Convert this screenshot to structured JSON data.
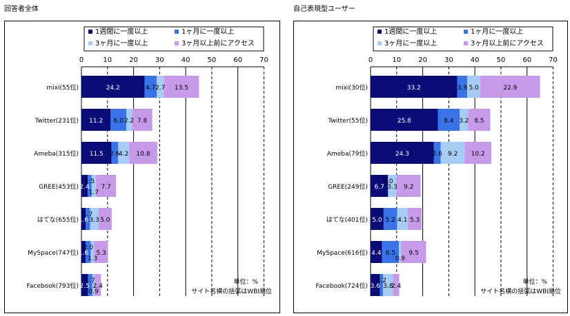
{
  "chart_data": [
    {
      "type": "bar",
      "stacked": true,
      "orientation": "horizontal",
      "title": "回答者全体",
      "categories": [
        "mixi(55位)",
        "Twitter(231位)",
        "Ameba(315位)",
        "GREE(453位)",
        "はてな(655位)",
        "MySpace(747位)",
        "Facebook(793位)"
      ],
      "series": [
        {
          "name": "1週間に一度以上",
          "color": "#0a0a78",
          "values": [
            24.2,
            11.2,
            11.5,
            2.4,
            1.6,
            1.6,
            2.5
          ]
        },
        {
          "name": "1ヶ月に一度以上",
          "color": "#3a73e8",
          "values": [
            4.7,
            6.0,
            2.6,
            1.5,
            1.7,
            2.0,
            1.7
          ]
        },
        {
          "name": "3ヶ月に一度以上",
          "color": "#a8cdf5",
          "values": [
            2.7,
            2.2,
            4.2,
            1.7,
            3.3,
            1.3,
            0.9
          ]
        },
        {
          "name": "3ヶ月以上前にアクセス",
          "color": "#c59ae8",
          "values": [
            13.5,
            7.8,
            10.8,
            7.7,
            5.0,
            5.3,
            2.4
          ]
        }
      ],
      "labels": [
        [
          "24.2",
          "4.7",
          "2.7",
          "13.5"
        ],
        [
          "11.2",
          "6.0",
          "2.2",
          "7.8"
        ],
        [
          "11.5",
          "2.6",
          "4.2",
          "10.8"
        ],
        [
          "2.4",
          "1.5",
          "1.7",
          "7.7"
        ],
        [
          "1.6",
          "1.7",
          "3.3",
          "5.0"
        ],
        [
          "1.6",
          "2.0",
          "1.3",
          "5.3"
        ],
        [
          "2.5",
          "1.7",
          "0.9",
          "2.4"
        ]
      ],
      "xlim": [
        0,
        70
      ],
      "xticks": [
        "0",
        "10",
        "20",
        "30",
        "40",
        "50",
        "60",
        "70"
      ],
      "note_unit": "単位：%",
      "note_rank": "サイト名横の括弧はWBI順位"
    },
    {
      "type": "bar",
      "stacked": true,
      "orientation": "horizontal",
      "title": "自己表現型ユーザー",
      "categories": [
        "mixi(30位)",
        "Twitter(55位)",
        "Ameba(79位)",
        "GREE(249位)",
        "はてな(401位)",
        "MySpace(616位)",
        "Facebook(724位)"
      ],
      "series": [
        {
          "name": "1週間に一度以上",
          "color": "#0a0a78",
          "values": [
            33.2,
            25.8,
            24.3,
            6.7,
            5.0,
            4.4,
            3.6
          ]
        },
        {
          "name": "1ヶ月に一度以上",
          "color": "#3a73e8",
          "values": [
            3.9,
            8.4,
            2.6,
            0.0,
            5.2,
            6.5,
            1.2
          ]
        },
        {
          "name": "3ヶ月に一度以上",
          "color": "#a8cdf5",
          "values": [
            5.0,
            3.2,
            9.2,
            3.3,
            4.1,
            0.9,
            3.8
          ]
        },
        {
          "name": "3ヶ月以上前にアクセス",
          "color": "#c59ae8",
          "values": [
            22.9,
            8.5,
            10.2,
            9.2,
            5.3,
            9.5,
            2.4
          ]
        }
      ],
      "labels": [
        [
          "33.2",
          "3.9",
          "5.0",
          "22.9"
        ],
        [
          "25.8",
          "8.4",
          "3.2",
          "8.5"
        ],
        [
          "24.3",
          "2.6",
          "9.2",
          "10.2"
        ],
        [
          "6.7",
          "0.0",
          "3.3",
          "9.2"
        ],
        [
          "5.0",
          "5.2",
          "4.1",
          "5.3"
        ],
        [
          "4.4",
          "6.5",
          "0.9",
          "9.5"
        ],
        [
          "3.6",
          "1.2",
          "3.8",
          "2.4"
        ]
      ],
      "xlim": [
        0,
        70
      ],
      "xticks": [
        "0",
        "10",
        "20",
        "30",
        "40",
        "50",
        "60",
        "70"
      ],
      "note_unit": "単位：%",
      "note_rank": "サイト名横の括弧はWBI順位"
    }
  ]
}
